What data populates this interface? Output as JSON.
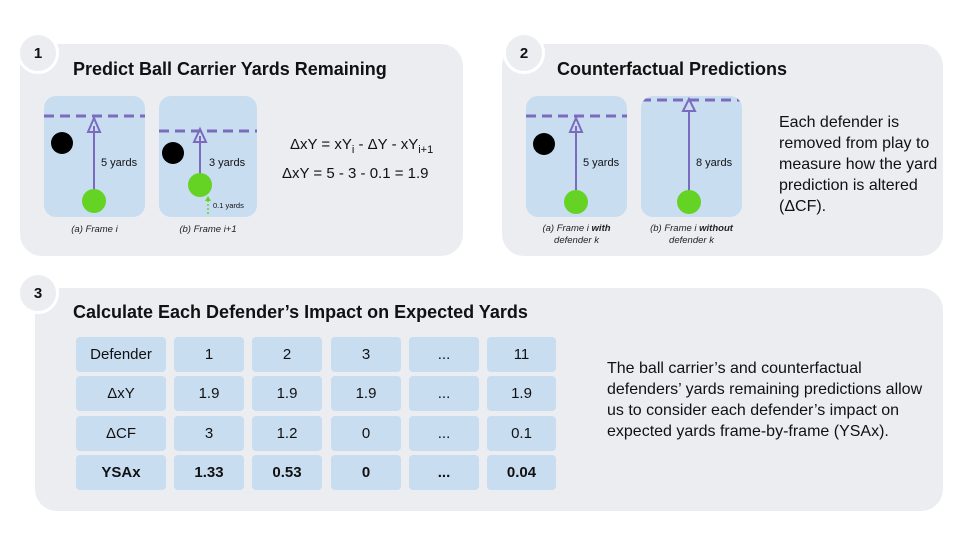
{
  "colors": {
    "panel": "#ecedf1",
    "field": "#c9ddf1",
    "line": "#7b6bbf",
    "ball": "#65d323",
    "defender": "#000000"
  },
  "step1": {
    "number": "1",
    "title": "Predict Ball Carrier Yards Remaining",
    "frame_a": {
      "yards_label": "5 yards",
      "caption": "(a) Frame i"
    },
    "frame_b": {
      "yards_label": "3 yards",
      "move_label": "0.1 yards",
      "caption": "(b) Frame i+1"
    },
    "eq1": {
      "a": "ΔxY = xY",
      "a_sub": "i",
      "b": " - ΔY - xY",
      "b_sub": "i+1"
    },
    "eq2": "ΔxY = 5 - 3 - 0.1 = 1.9"
  },
  "step2": {
    "number": "2",
    "title": "Counterfactual Predictions",
    "frame_a": {
      "yards_label": "5 yards",
      "caption_pre": "(a) Frame i ",
      "caption_bold": "with",
      "caption_line2": "defender k"
    },
    "frame_b": {
      "yards_label": "8 yards",
      "caption_pre": "(b) Frame i ",
      "caption_bold": "without",
      "caption_line2": "defender k"
    },
    "description": "Each defender is removed from play to measure how the yard prediction is altered (ΔCF)."
  },
  "step3": {
    "number": "3",
    "title": "Calculate Each Defender’s Impact on Expected Yards",
    "table": {
      "rows": [
        {
          "label": "Defender",
          "values": [
            "1",
            "2",
            "3",
            "...",
            "11"
          ]
        },
        {
          "label": "ΔxY",
          "values": [
            "1.9",
            "1.9",
            "1.9",
            "...",
            "1.9"
          ]
        },
        {
          "label": "ΔCF",
          "values": [
            "3",
            "1.2",
            "0",
            "...",
            "0.1"
          ]
        },
        {
          "label": "YSAx",
          "values": [
            "1.33",
            "0.53",
            "0",
            "...",
            "0.04"
          ]
        }
      ]
    },
    "description": "The ball carrier’s and counterfactual defenders’ yards remaining predictions allow us to consider each defender’s impact on expected yards frame-by-frame (YSAx)."
  }
}
